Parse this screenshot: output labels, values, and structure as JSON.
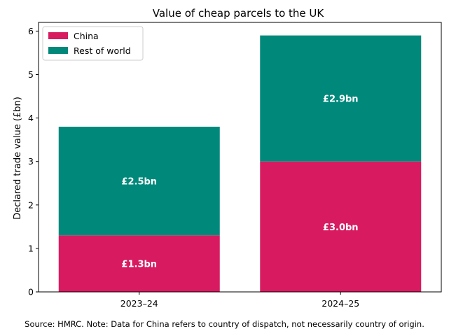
{
  "chart_data": {
    "type": "bar",
    "stacked": true,
    "title": "Value of cheap parcels to the UK",
    "xlabel": "",
    "ylabel": "Declared trade value (£bn)",
    "categories": [
      "2023–24",
      "2024–25"
    ],
    "series": [
      {
        "name": "China",
        "values": [
          1.3,
          3.0
        ],
        "labels": [
          "£1.3bn",
          "£3.0bn"
        ],
        "color": "#d81b60"
      },
      {
        "name": "Rest of world",
        "values": [
          2.5,
          2.9
        ],
        "labels": [
          "£2.5bn",
          "£2.9bn"
        ],
        "color": "#00897b"
      }
    ],
    "ylim": [
      0,
      6.2
    ],
    "yticks": [
      "0",
      "1",
      "2",
      "3",
      "4",
      "5",
      "6"
    ],
    "grid": false,
    "legend": "top-left"
  },
  "footer": {
    "source": "Source: HMRC. Note: Data for China refers to country of dispatch, not necessarily country of origin."
  }
}
